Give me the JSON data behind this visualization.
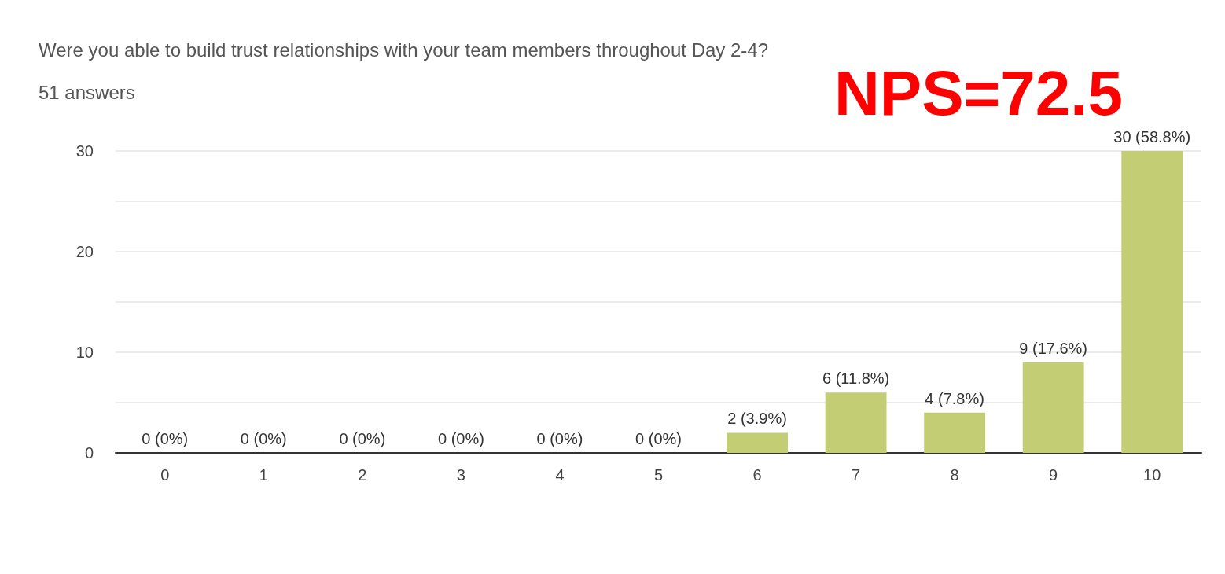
{
  "chart_data": {
    "type": "bar",
    "title": "Were you able to build trust relationships with your team members throughout Day 2-4?",
    "subtitle": "51 answers",
    "annotations": [
      "NPS=72.5"
    ],
    "categories": [
      "0",
      "1",
      "2",
      "3",
      "4",
      "5",
      "6",
      "7",
      "8",
      "9",
      "10"
    ],
    "values": [
      0,
      0,
      0,
      0,
      0,
      0,
      2,
      6,
      4,
      9,
      30
    ],
    "value_labels": [
      "0 (0%)",
      "0 (0%)",
      "0 (0%)",
      "0 (0%)",
      "0 (0%)",
      "0 (0%)",
      "2 (3.9%)",
      "6 (11.8%)",
      "4 (7.8%)",
      "9 (17.6%)",
      "30 (58.8%)"
    ],
    "color": "#c2cd74",
    "ylim": [
      0,
      30
    ],
    "yticks": [
      0,
      {
        "value": 5,
        "label": null
      },
      10,
      {
        "value": 15,
        "label": null
      },
      20,
      {
        "value": 25,
        "label": null
      },
      30
    ],
    "grid": "y"
  }
}
